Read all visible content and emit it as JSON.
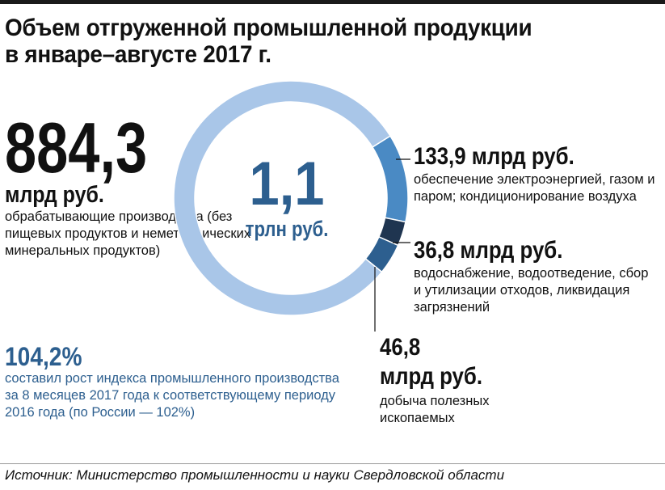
{
  "chart_data": {
    "type": "donut",
    "title_lines": [
      "Объем отгруженной промышленной продукции",
      "в январе–августе 2017 г."
    ],
    "total": {
      "value": "1,1",
      "unit": "трлн руб."
    },
    "segments": [
      {
        "id": "manufacturing",
        "value": 884.3,
        "value_label": "884,3",
        "unit": "млрд руб.",
        "description": "обрабатывающие производства (без пищевых продуктов и неметаллических минеральных продуктов)",
        "color": "#a9c6e8"
      },
      {
        "id": "energy",
        "value": 133.9,
        "value_label": "133,9 млрд руб.",
        "description": "обеспечение электроэнергией, газом и паром; кондиционирование воздуха",
        "color": "#4a8ac4"
      },
      {
        "id": "water",
        "value": 36.8,
        "value_label": "36,8 млрд руб.",
        "description": "водоснабжение, водоотведение, сбор и утилизации отходов, ликвидация загрязнений",
        "color": "#1f3550"
      },
      {
        "id": "mining",
        "value": 46.8,
        "value_label": "46,8",
        "unit": "млрд руб.",
        "description": "добыча полезных ископаемых",
        "color": "#2d5f8f"
      }
    ],
    "growth": {
      "value": "104,2%",
      "description": "составил рост индекса промышленного производства за 8 месяцев 2017 года к соответствующему периоду 2016 года (по России — 102%)"
    },
    "source": "Источник: Министерство промышленности и науки Свердловской области"
  }
}
